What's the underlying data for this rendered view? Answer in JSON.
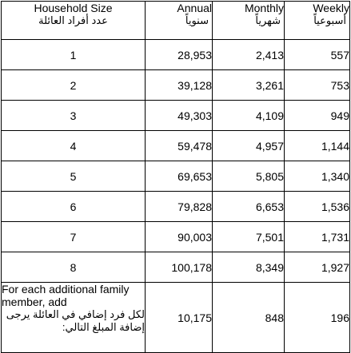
{
  "headers": {
    "household_size": {
      "en": "Household Size",
      "ar": "عدد أفراد العائلة"
    },
    "annual": {
      "en": "Annual",
      "ar": "سنوياً"
    },
    "monthly": {
      "en": "Monthly",
      "ar": "شهرياً"
    },
    "weekly": {
      "en": "Weekly",
      "ar": "أسبوعياً"
    }
  },
  "rows": [
    {
      "size": "1",
      "annual": "28,953",
      "monthly": "2,413",
      "weekly": "557"
    },
    {
      "size": "2",
      "annual": "39,128",
      "monthly": "3,261",
      "weekly": "753"
    },
    {
      "size": "3",
      "annual": "49,303",
      "monthly": "4,109",
      "weekly": "949"
    },
    {
      "size": "4",
      "annual": "59,478",
      "monthly": "4,957",
      "weekly": "1,144"
    },
    {
      "size": "5",
      "annual": "69,653",
      "monthly": "5,805",
      "weekly": "1,340"
    },
    {
      "size": "6",
      "annual": "79,828",
      "monthly": "6,653",
      "weekly": "1,536"
    },
    {
      "size": "7",
      "annual": "90,003",
      "monthly": "7,501",
      "weekly": "1,731"
    },
    {
      "size": "8",
      "annual": "100,178",
      "monthly": "8,349",
      "weekly": "1,927"
    }
  ],
  "additional": {
    "label_en": "For each additional family member, add",
    "label_ar": "لكل فرد إضافي في العائلة يرجى إضافة المبلغ التالي:",
    "annual": "10,175",
    "monthly": "848",
    "weekly": "196"
  }
}
